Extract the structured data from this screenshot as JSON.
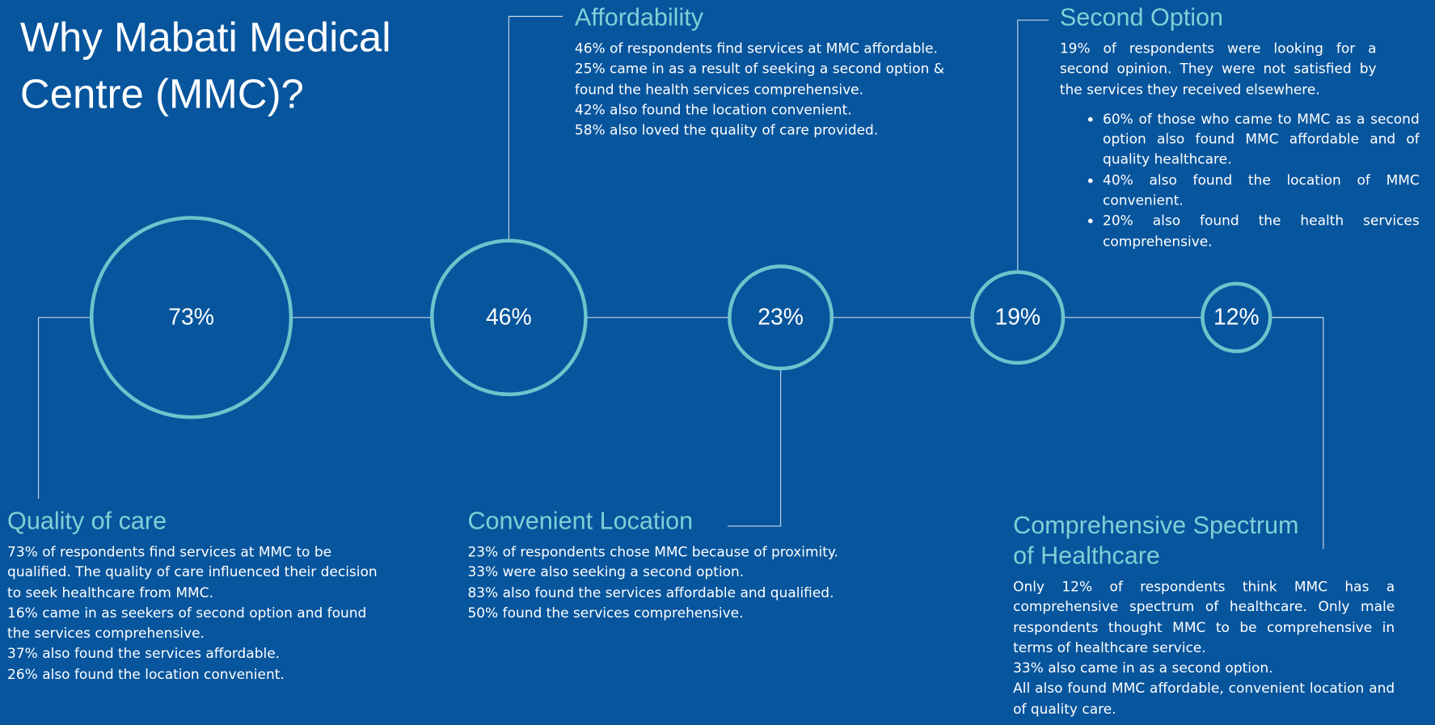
{
  "title": "Why Mabati Medical Centre (MMC)?",
  "circles": [
    {
      "value": 73,
      "label": "73%"
    },
    {
      "value": 46,
      "label": "46%"
    },
    {
      "value": 23,
      "label": "23%"
    },
    {
      "value": 19,
      "label": "19%"
    },
    {
      "value": 12,
      "label": "12%"
    }
  ],
  "sections": [
    {
      "heading": "Quality of care",
      "lines": [
        "73% of respondents find services at MMC to be qualified. The quality of care influenced their decision to seek healthcare from MMC.",
        "16% came in as seekers of second option and found the services comprehensive.",
        "37% also found the services affordable.",
        "26% also found the location convenient."
      ]
    },
    {
      "heading": "Affordability",
      "lines": [
        "46% of respondents find services at MMC affordable.",
        "25% came in as a result of seeking a second option & found the health services comprehensive.",
        "42% also found the location convenient.",
        "58% also loved the quality of care provided."
      ]
    },
    {
      "heading": "Convenient Location",
      "lines": [
        "23% of respondents chose MMC because of proximity.",
        "33% were also seeking a second option.",
        "83% also found the services affordable and qualified.",
        "50% found the services comprehensive."
      ]
    },
    {
      "heading": "Second Option",
      "lines": [
        "19% of respondents were looking for a second opinion. They were not satisfied by the services they received elsewhere."
      ],
      "bullets": [
        "60% of those who came to MMC as a second option also found MMC affordable and of quality healthcare.",
        "40% also found the location of MMC convenient.",
        "20% also found the health services comprehensive."
      ]
    },
    {
      "heading": "Comprehensive Spectrum of Healthcare",
      "lines": [
        "Only 12% of respondents think MMC has a comprehensive spectrum of healthcare. Only male respondents thought MMC to be comprehensive in terms of healthcare service.",
        "33% also came in as a second option.",
        "All also found MMC affordable, convenient location and of quality care."
      ]
    }
  ]
}
